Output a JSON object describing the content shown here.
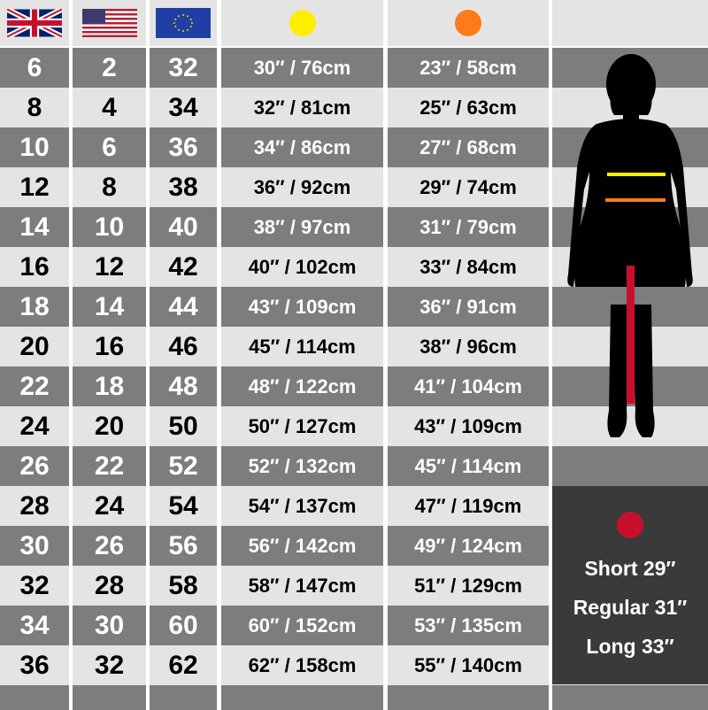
{
  "headers": {
    "uk": "uk-flag-icon",
    "us": "us-flag-icon",
    "eu": "eu-flag-icon",
    "waist_color": "#ffee00",
    "hip_color": "#ff7a1a",
    "inseam_color": "#c8102e"
  },
  "rows": [
    {
      "uk": "6",
      "us": "2",
      "eu": "32",
      "waist": "30″ / 76cm",
      "hip": "23″ / 58cm"
    },
    {
      "uk": "8",
      "us": "4",
      "eu": "34",
      "waist": "32″ / 81cm",
      "hip": "25″ / 63cm"
    },
    {
      "uk": "10",
      "us": "6",
      "eu": "36",
      "waist": "34″ / 86cm",
      "hip": "27″ / 68cm"
    },
    {
      "uk": "12",
      "us": "8",
      "eu": "38",
      "waist": "36″ / 92cm",
      "hip": "29″ / 74cm"
    },
    {
      "uk": "14",
      "us": "10",
      "eu": "40",
      "waist": "38″ / 97cm",
      "hip": "31″ / 79cm"
    },
    {
      "uk": "16",
      "us": "12",
      "eu": "42",
      "waist": "40″ / 102cm",
      "hip": "33″ / 84cm"
    },
    {
      "uk": "18",
      "us": "14",
      "eu": "44",
      "waist": "43″ / 109cm",
      "hip": "36″ / 91cm"
    },
    {
      "uk": "20",
      "us": "16",
      "eu": "46",
      "waist": "45″ / 114cm",
      "hip": "38″ / 96cm"
    },
    {
      "uk": "22",
      "us": "18",
      "eu": "48",
      "waist": "48″ / 122cm",
      "hip": "41″ / 104cm"
    },
    {
      "uk": "24",
      "us": "20",
      "eu": "50",
      "waist": "50″ / 127cm",
      "hip": "43″ / 109cm"
    },
    {
      "uk": "26",
      "us": "22",
      "eu": "52",
      "waist": "52″ / 132cm",
      "hip": "45″ / 114cm"
    },
    {
      "uk": "28",
      "us": "24",
      "eu": "54",
      "waist": "54″ / 137cm",
      "hip": "47″ / 119cm"
    },
    {
      "uk": "30",
      "us": "26",
      "eu": "56",
      "waist": "56″ / 142cm",
      "hip": "49″ / 124cm"
    },
    {
      "uk": "32",
      "us": "28",
      "eu": "58",
      "waist": "58″ / 147cm",
      "hip": "51″ / 129cm"
    },
    {
      "uk": "34",
      "us": "30",
      "eu": "60",
      "waist": "60″ / 152cm",
      "hip": "53″ / 135cm"
    },
    {
      "uk": "36",
      "us": "32",
      "eu": "62",
      "waist": "62″ / 158cm",
      "hip": "55″ / 140cm"
    }
  ],
  "inseam": {
    "short": "Short 29″",
    "regular": "Regular 31″",
    "long": "Long 33″"
  }
}
